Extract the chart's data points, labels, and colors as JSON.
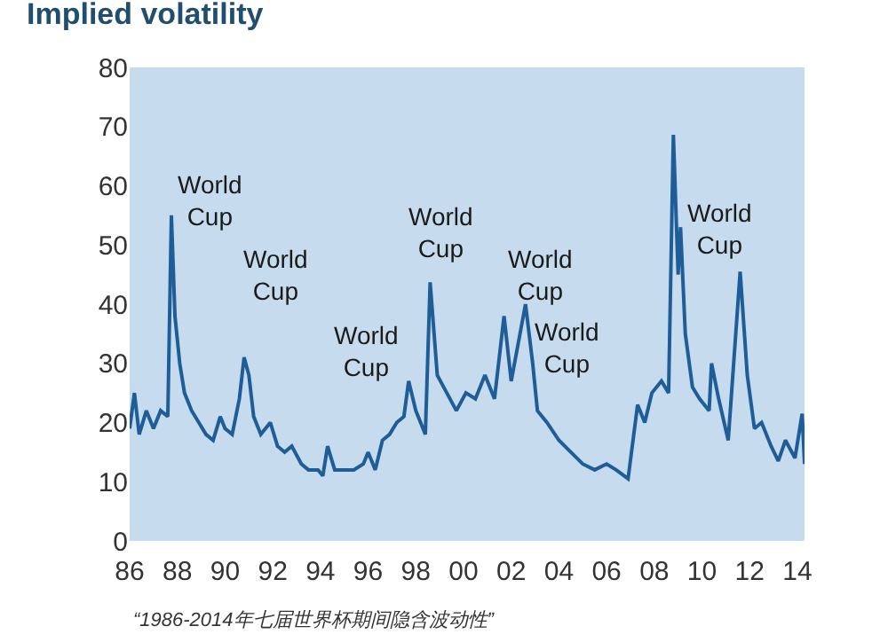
{
  "chart_data": {
    "type": "line",
    "title": "Implied volatility",
    "x": [
      1986.0,
      1986.2,
      1986.4,
      1986.7,
      1987.0,
      1987.3,
      1987.6,
      1987.75,
      1987.9,
      1988.1,
      1988.3,
      1988.6,
      1988.9,
      1989.2,
      1989.5,
      1989.8,
      1990.0,
      1990.3,
      1990.6,
      1990.8,
      1991.0,
      1991.2,
      1991.5,
      1991.9,
      1992.2,
      1992.5,
      1992.8,
      1993.2,
      1993.5,
      1993.9,
      1994.1,
      1994.3,
      1994.6,
      1995.0,
      1995.4,
      1995.8,
      1996.0,
      1996.3,
      1996.6,
      1996.9,
      1997.2,
      1997.5,
      1997.7,
      1998.0,
      1998.4,
      1998.6,
      1998.9,
      1999.3,
      1999.7,
      2000.1,
      2000.5,
      2000.9,
      2001.3,
      2001.7,
      2002.0,
      2002.6,
      2002.9,
      2003.1,
      2003.5,
      2004.0,
      2004.5,
      2005.0,
      2005.5,
      2006.0,
      2006.4,
      2006.9,
      2007.3,
      2007.6,
      2007.9,
      2008.3,
      2008.6,
      2008.8,
      2009.0,
      2009.1,
      2009.3,
      2009.6,
      2009.9,
      2010.3,
      2010.4,
      2010.7,
      2011.1,
      2011.6,
      2011.9,
      2012.2,
      2012.5,
      2012.9,
      2013.2,
      2013.5,
      2013.9,
      2014.2,
      2014.3
    ],
    "series": [
      {
        "color": "#1f5d99",
        "values": [
          19,
          25,
          18,
          22,
          19,
          22,
          21,
          55,
          38,
          30,
          25,
          22,
          20,
          18,
          17,
          21,
          19,
          18,
          24,
          31,
          28,
          21,
          18,
          20,
          16,
          15,
          16,
          13,
          12,
          12,
          11,
          16,
          12,
          12,
          12,
          13,
          15,
          12,
          17,
          18,
          20,
          21,
          27,
          22,
          18,
          43.7,
          28,
          25,
          22,
          25,
          24,
          28,
          24,
          38,
          27,
          40,
          30,
          22,
          20,
          17,
          15,
          13,
          12,
          13,
          12,
          10.5,
          23,
          20,
          25,
          27,
          25,
          68.6,
          45,
          53,
          35,
          26,
          24,
          22,
          30,
          24,
          17,
          45.5,
          28,
          19,
          20,
          16,
          13.5,
          17,
          14,
          21.5,
          13
        ]
      }
    ],
    "xlim": [
      1986,
      2014.3
    ],
    "ylim": [
      0,
      80
    ],
    "xticks": [
      {
        "value": 1986,
        "label": "86"
      },
      {
        "value": 1988,
        "label": "88"
      },
      {
        "value": 1990,
        "label": "90"
      },
      {
        "value": 1992,
        "label": "92"
      },
      {
        "value": 1994,
        "label": "94"
      },
      {
        "value": 1996,
        "label": "96"
      },
      {
        "value": 1998,
        "label": "98"
      },
      {
        "value": 2000,
        "label": "00"
      },
      {
        "value": 2002,
        "label": "02"
      },
      {
        "value": 2004,
        "label": "04"
      },
      {
        "value": 2006,
        "label": "06"
      },
      {
        "value": 2008,
        "label": "08"
      },
      {
        "value": 2010,
        "label": "10"
      },
      {
        "value": 2012,
        "label": "12"
      },
      {
        "value": 2014,
        "label": "14"
      }
    ],
    "yticks": [
      0,
      10,
      20,
      30,
      40,
      50,
      60,
      70,
      80
    ],
    "grid": false,
    "marker": "none",
    "line_style": "solid",
    "annotations": [
      "World Cup",
      "World Cup",
      "World Cup",
      "World Cup",
      "World Cup",
      "World Cup",
      "World Cup",
      "“1986-2014年七届世界杯期间隐含波动性”"
    ]
  }
}
